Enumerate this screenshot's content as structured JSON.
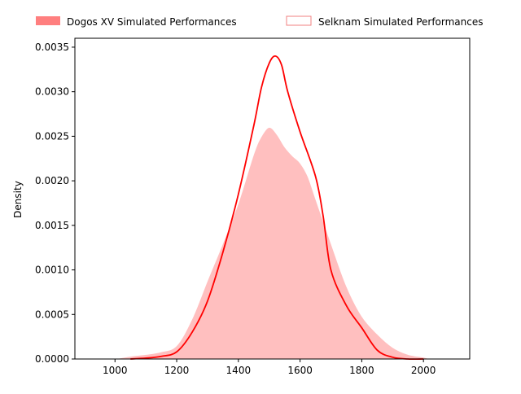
{
  "chart_data": {
    "type": "area",
    "title": "",
    "xlabel": "",
    "ylabel": "Density",
    "xlim": [
      870,
      2150
    ],
    "ylim": [
      0,
      0.0036
    ],
    "x_ticks": [
      1000,
      1200,
      1400,
      1600,
      1800,
      2000
    ],
    "x_tick_labels": [
      "1000",
      "1200",
      "1400",
      "1600",
      "1800",
      "2000"
    ],
    "y_ticks": [
      0,
      0.0005,
      0.001,
      0.0015,
      0.002,
      0.0025,
      0.003,
      0.0035
    ],
    "y_tick_labels": [
      "0.0000",
      "0.0005",
      "0.0010",
      "0.0015",
      "0.0020",
      "0.0025",
      "0.0030",
      "0.0035"
    ],
    "grid": false,
    "legend": {
      "placement": "top, above plot"
    },
    "colors": {
      "dogos_fill": "#ff7f7f",
      "selknam_fill": "#ffbfbf",
      "selknam_edge": "#f08080",
      "dogos_line": "#ff0000"
    },
    "series": [
      {
        "name": "Dogos XV Simulated Performances",
        "style": "filled",
        "x": [
          1000,
          1050,
          1100,
          1150,
          1200,
          1250,
          1300,
          1350,
          1400,
          1450,
          1475,
          1500,
          1525,
          1550,
          1575,
          1600,
          1625,
          1650,
          1700,
          1750,
          1800,
          1850,
          1900,
          1950,
          2000,
          2020
        ],
        "y": [
          0.0,
          3e-05,
          5e-05,
          8e-05,
          0.00015,
          0.00045,
          0.00088,
          0.0013,
          0.00175,
          0.0023,
          0.0025,
          0.0026,
          0.00252,
          0.00238,
          0.00228,
          0.0022,
          0.00205,
          0.0018,
          0.0013,
          0.00082,
          0.00048,
          0.00028,
          0.00013,
          5e-05,
          2e-05,
          0.0
        ]
      },
      {
        "name": "Selknam Simulated Performances",
        "style": "line",
        "x": [
          1050,
          1100,
          1150,
          1200,
          1250,
          1300,
          1350,
          1400,
          1450,
          1475,
          1500,
          1520,
          1540,
          1560,
          1600,
          1650,
          1675,
          1700,
          1750,
          1800,
          1850,
          1900,
          1950,
          2000
        ],
        "y": [
          0.0,
          1e-05,
          3e-05,
          8e-05,
          0.0003,
          0.00065,
          0.0012,
          0.00185,
          0.00262,
          0.00305,
          0.00332,
          0.0034,
          0.0033,
          0.003,
          0.00255,
          0.00205,
          0.0016,
          0.001,
          0.0006,
          0.00035,
          0.0001,
          2e-05,
          0.0,
          0.0
        ]
      }
    ]
  }
}
